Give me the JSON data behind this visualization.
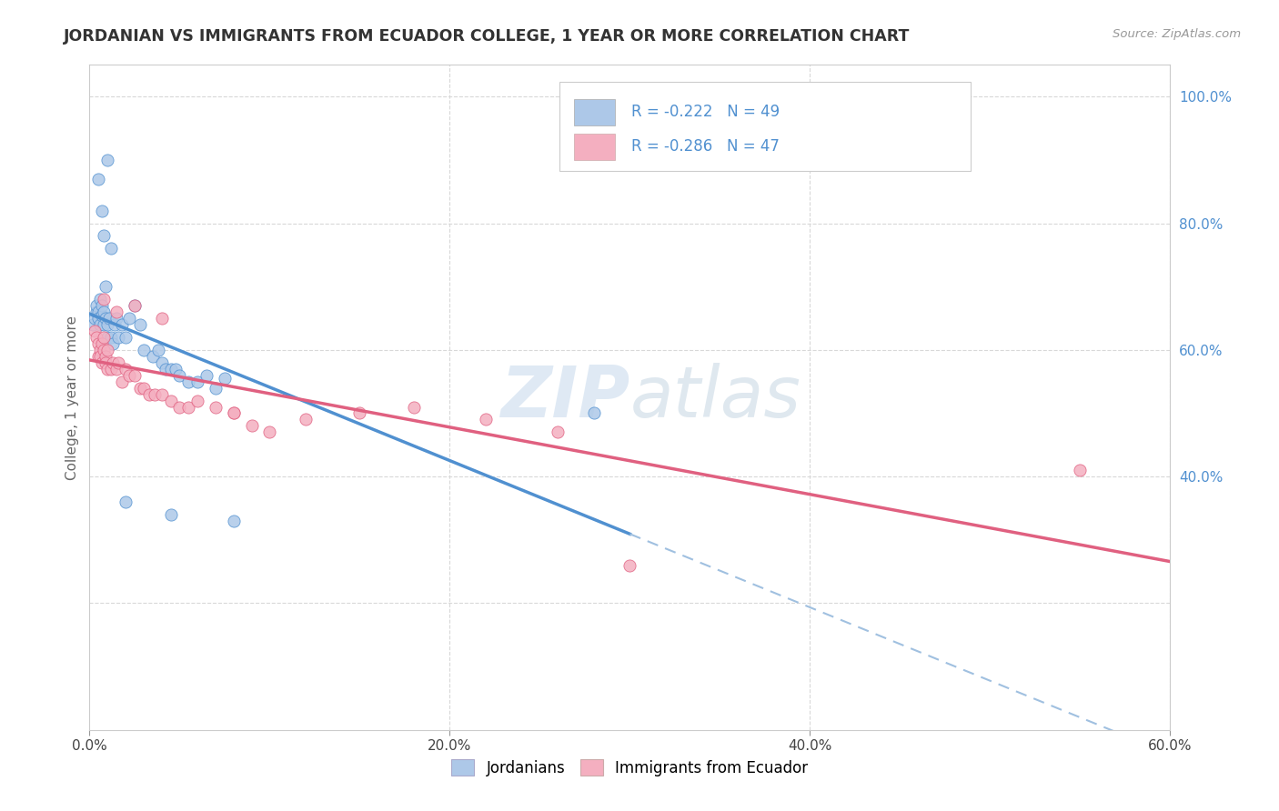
{
  "title": "JORDANIAN VS IMMIGRANTS FROM ECUADOR COLLEGE, 1 YEAR OR MORE CORRELATION CHART",
  "source": "Source: ZipAtlas.com",
  "ylabel": "College, 1 year or more",
  "legend_labels": [
    "Jordanians",
    "Immigrants from Ecuador"
  ],
  "r_jordan": -0.222,
  "n_jordan": 49,
  "r_ecuador": -0.286,
  "n_ecuador": 47,
  "xmin": 0.0,
  "xmax": 0.6,
  "ymin": 0.0,
  "ymax": 1.05,
  "right_yticks": [
    1.0,
    0.8,
    0.6,
    0.4
  ],
  "right_ytick_labels": [
    "100.0%",
    "80.0%",
    "60.0%",
    "40.0%"
  ],
  "xtick_values": [
    0.0,
    0.2,
    0.4,
    0.6
  ],
  "xtick_labels": [
    "0.0%",
    "20.0%",
    "40.0%",
    "60.0%"
  ],
  "color_jordan": "#adc8e8",
  "color_ecuador": "#f4afc0",
  "line_jordan": "#5090d0",
  "line_ecuador": "#e06080",
  "line_dashed_color": "#a0c0e0",
  "background": "#ffffff",
  "grid_color": "#d8d8d8",
  "jordan_line_end_x": 0.3,
  "jordan_x": [
    0.002,
    0.003,
    0.004,
    0.004,
    0.005,
    0.005,
    0.006,
    0.006,
    0.007,
    0.007,
    0.008,
    0.008,
    0.009,
    0.009,
    0.01,
    0.01,
    0.011,
    0.012,
    0.013,
    0.014,
    0.015,
    0.016,
    0.018,
    0.02,
    0.022,
    0.025,
    0.028,
    0.03,
    0.035,
    0.038,
    0.04,
    0.042,
    0.045,
    0.048,
    0.05,
    0.055,
    0.06,
    0.065,
    0.07,
    0.075,
    0.005,
    0.007,
    0.008,
    0.01,
    0.012,
    0.28,
    0.02,
    0.045,
    0.08
  ],
  "jordan_y": [
    0.64,
    0.65,
    0.66,
    0.67,
    0.66,
    0.65,
    0.64,
    0.68,
    0.655,
    0.67,
    0.64,
    0.66,
    0.65,
    0.7,
    0.62,
    0.64,
    0.65,
    0.62,
    0.61,
    0.64,
    0.65,
    0.62,
    0.64,
    0.62,
    0.65,
    0.67,
    0.64,
    0.6,
    0.59,
    0.6,
    0.58,
    0.57,
    0.57,
    0.57,
    0.56,
    0.55,
    0.55,
    0.56,
    0.54,
    0.555,
    0.87,
    0.82,
    0.78,
    0.9,
    0.76,
    0.5,
    0.36,
    0.34,
    0.33
  ],
  "ecuador_x": [
    0.003,
    0.004,
    0.005,
    0.005,
    0.006,
    0.006,
    0.007,
    0.007,
    0.008,
    0.008,
    0.009,
    0.009,
    0.01,
    0.01,
    0.012,
    0.013,
    0.015,
    0.016,
    0.018,
    0.02,
    0.022,
    0.025,
    0.028,
    0.03,
    0.033,
    0.036,
    0.04,
    0.045,
    0.05,
    0.055,
    0.06,
    0.07,
    0.08,
    0.09,
    0.1,
    0.12,
    0.15,
    0.18,
    0.22,
    0.26,
    0.008,
    0.015,
    0.025,
    0.04,
    0.08,
    0.55,
    0.3
  ],
  "ecuador_y": [
    0.63,
    0.62,
    0.61,
    0.59,
    0.6,
    0.59,
    0.61,
    0.58,
    0.6,
    0.62,
    0.59,
    0.58,
    0.6,
    0.57,
    0.57,
    0.58,
    0.57,
    0.58,
    0.55,
    0.57,
    0.56,
    0.56,
    0.54,
    0.54,
    0.53,
    0.53,
    0.53,
    0.52,
    0.51,
    0.51,
    0.52,
    0.51,
    0.5,
    0.48,
    0.47,
    0.49,
    0.5,
    0.51,
    0.49,
    0.47,
    0.68,
    0.66,
    0.67,
    0.65,
    0.5,
    0.41,
    0.26
  ]
}
